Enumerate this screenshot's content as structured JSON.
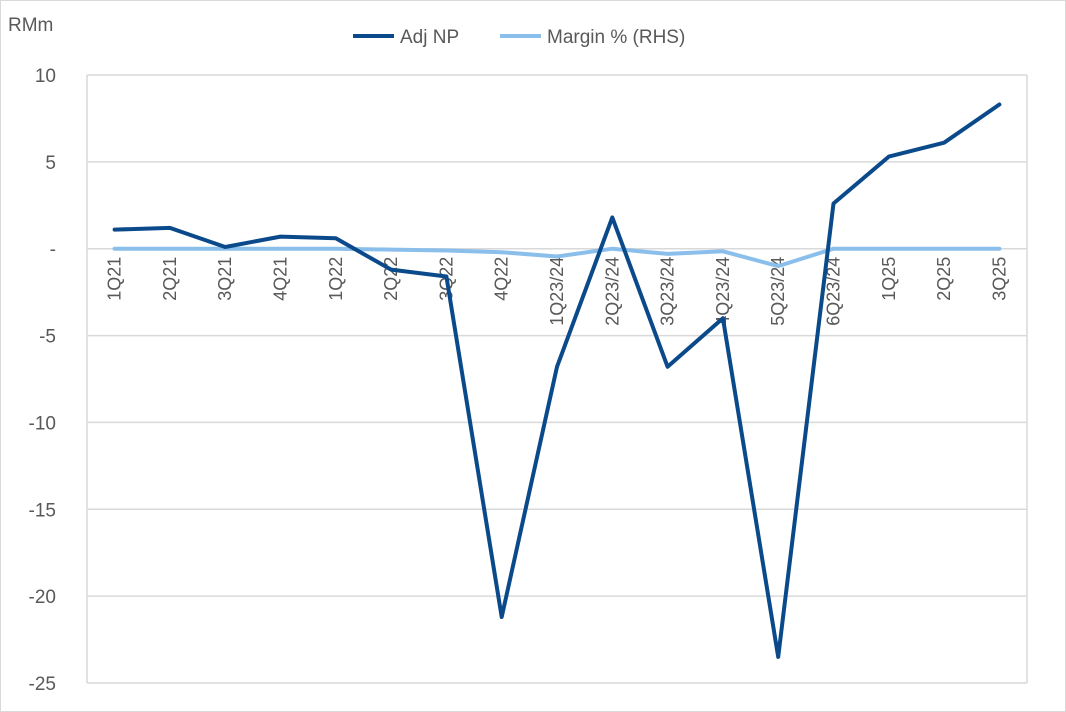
{
  "chart_data": {
    "type": "line",
    "title": "",
    "ylabel": "RMm",
    "xlabel": "",
    "ylim": [
      -25,
      10
    ],
    "yticks": [
      10,
      5,
      0,
      -5,
      -10,
      -15,
      -20,
      -25
    ],
    "ytick_labels": [
      "10",
      "5",
      "-",
      "-5",
      "-10",
      "-15",
      "-20",
      "-25"
    ],
    "grid": true,
    "legend": "top-center",
    "categories": [
      "1Q21",
      "2Q21",
      "3Q21",
      "4Q21",
      "1Q22",
      "2Q22",
      "3Q22",
      "4Q22",
      "1Q23/24",
      "2Q23/24",
      "3Q23/24",
      "4Q23/24",
      "5Q23/24",
      "6Q23/24",
      "1Q25",
      "2Q25",
      "3Q25"
    ],
    "series": [
      {
        "name": "Adj NP",
        "axis": "left",
        "color": "#0B4A8A",
        "values": [
          1.1,
          1.2,
          0.1,
          0.7,
          0.6,
          -1.2,
          -1.6,
          -21.2,
          -6.8,
          1.8,
          -6.8,
          -4.0,
          -23.5,
          2.6,
          5.3,
          6.1,
          8.3
        ]
      },
      {
        "name": "Margin % (RHS)",
        "axis": "right",
        "color": "#8BBFEB",
        "values": [
          0,
          0,
          0,
          0,
          0,
          -0.05,
          -0.1,
          -0.2,
          -0.45,
          0,
          -0.3,
          -0.15,
          -1.0,
          0,
          0,
          0,
          0
        ]
      }
    ]
  }
}
